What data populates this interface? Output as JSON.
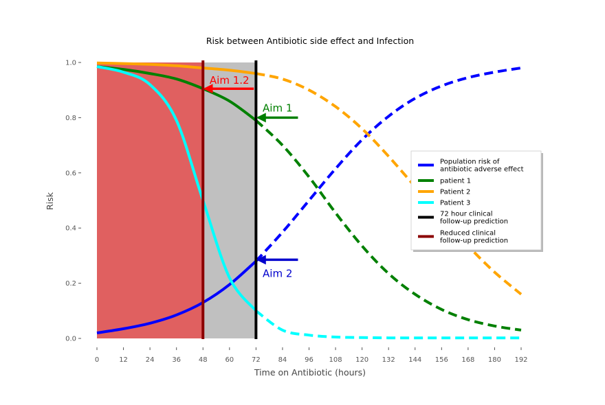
{
  "chart_data": {
    "type": "line",
    "title": "Risk between Antibiotic side effect and Infection",
    "xlabel": "Time on Antibiotic (hours)",
    "ylabel": "Risk",
    "xlim": [
      0,
      192
    ],
    "ylim": [
      0,
      1.0
    ],
    "x_ticks": [
      0,
      12,
      24,
      36,
      48,
      60,
      72,
      84,
      96,
      108,
      120,
      132,
      144,
      156,
      168,
      180,
      192
    ],
    "y_ticks": [
      0.0,
      0.2,
      0.4,
      0.6,
      0.8,
      1.0
    ],
    "grid": false,
    "legend_position": "center-right",
    "x": [
      0,
      12,
      24,
      36,
      48,
      60,
      72,
      84,
      96,
      108,
      120,
      132,
      144,
      156,
      168,
      180,
      192
    ],
    "series": [
      {
        "name": "Population risk of antibiotic adverse effect",
        "legend_lines": [
          "Population risk of",
          "antibiotic adverse effect"
        ],
        "color": "#0000ff",
        "values": [
          0.02,
          0.035,
          0.055,
          0.085,
          0.13,
          0.195,
          0.28,
          0.385,
          0.5,
          0.615,
          0.72,
          0.805,
          0.87,
          0.915,
          0.945,
          0.965,
          0.98
        ],
        "solid_until": 72
      },
      {
        "name": "patient 1",
        "legend_lines": [
          "patient 1"
        ],
        "color": "#008000",
        "values": [
          0.985,
          0.975,
          0.96,
          0.94,
          0.905,
          0.86,
          0.79,
          0.7,
          0.585,
          0.455,
          0.335,
          0.235,
          0.16,
          0.105,
          0.068,
          0.045,
          0.03
        ],
        "solid_until": 72
      },
      {
        "name": "Patient 2",
        "legend_lines": [
          "Patient 2"
        ],
        "color": "#ffa500",
        "values": [
          0.998,
          0.996,
          0.993,
          0.988,
          0.98,
          0.972,
          0.96,
          0.94,
          0.9,
          0.84,
          0.76,
          0.66,
          0.55,
          0.44,
          0.335,
          0.24,
          0.16
        ],
        "solid_until": 72
      },
      {
        "name": "Patient 3",
        "legend_lines": [
          "Patient 3"
        ],
        "color": "#00ffff",
        "values": [
          0.985,
          0.965,
          0.92,
          0.79,
          0.5,
          0.22,
          0.1,
          0.03,
          0.012,
          0.005,
          0.003,
          0.002,
          0.002,
          0.002,
          0.002,
          0.002,
          0.002
        ],
        "solid_until": 72
      }
    ],
    "vertical_lines": [
      {
        "name": "72 hour clinical follow-up prediction",
        "legend_lines": [
          "72 hour clinical",
          "follow-up prediction"
        ],
        "x": 72,
        "color": "#000000"
      },
      {
        "name": "Reduced clinical follow-up prediction",
        "legend_lines": [
          "Reduced clinical",
          "follow-up prediction"
        ],
        "x": 48,
        "color": "#8b0000"
      }
    ],
    "shaded_regions": [
      {
        "x_start": 0,
        "x_end": 48,
        "color": "#e06060"
      },
      {
        "x_start": 48,
        "x_end": 72,
        "color": "#c0c0c0"
      }
    ],
    "annotations": [
      {
        "text": "Aim 1.2",
        "color": "#ff0000",
        "x": 51,
        "y": 0.935,
        "arrow_from": [
          71,
          0.905
        ],
        "arrow_to": [
          49,
          0.905
        ]
      },
      {
        "text": "Aim 1",
        "color": "#008000",
        "x": 75,
        "y": 0.835,
        "arrow_from": [
          91,
          0.8
        ],
        "arrow_to": [
          73,
          0.8
        ]
      },
      {
        "text": "Aim 2",
        "color": "#0000cd",
        "x": 75,
        "y": 0.235,
        "arrow_from": [
          91,
          0.285
        ],
        "arrow_to": [
          73,
          0.285
        ]
      }
    ]
  }
}
